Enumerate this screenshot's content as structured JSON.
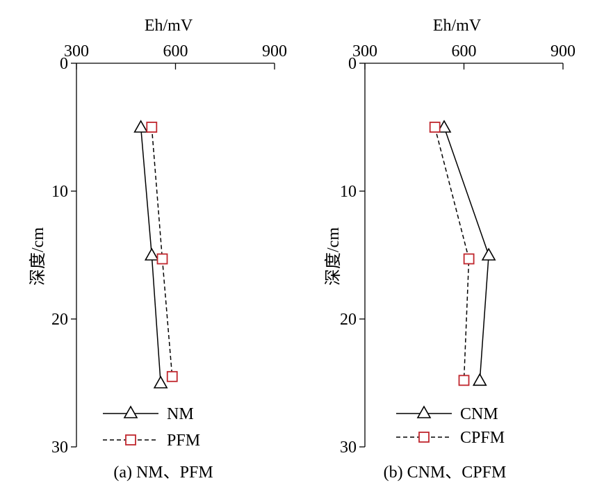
{
  "chart_data": [
    {
      "type": "line",
      "caption": "(a) NM、PFM",
      "xlabel": "Eh/mV",
      "ylabel": "深度/cm",
      "xlim": [
        300,
        900
      ],
      "ylim": [
        0,
        30
      ],
      "y_inverted": true,
      "x_axis_position": "top",
      "xticks": [
        "300",
        "600",
        "900"
      ],
      "yticks": [
        "0",
        "10",
        "20",
        "30"
      ],
      "legend_position": "bottom-left",
      "series": [
        {
          "name": "NM",
          "marker": "triangle",
          "line": "solid",
          "color": "#000000",
          "points": [
            {
              "x": 495,
              "y": 5
            },
            {
              "x": 528,
              "y": 15
            },
            {
              "x": 555,
              "y": 25
            }
          ]
        },
        {
          "name": "PFM",
          "marker": "square",
          "line": "dashed",
          "color": "#c0262d",
          "points": [
            {
              "x": 528,
              "y": 5
            },
            {
              "x": 560,
              "y": 15.3
            },
            {
              "x": 590,
              "y": 24.5
            }
          ]
        }
      ]
    },
    {
      "type": "line",
      "caption": "(b) CNM、CPFM",
      "xlabel": "Eh/mV",
      "ylabel": "深度/cm",
      "xlim": [
        300,
        900
      ],
      "ylim": [
        0,
        30
      ],
      "y_inverted": true,
      "x_axis_position": "top",
      "xticks": [
        "300",
        "600",
        "900"
      ],
      "yticks": [
        "0",
        "10",
        "20",
        "30"
      ],
      "legend_position": "bottom-left",
      "series": [
        {
          "name": "CNM",
          "marker": "triangle",
          "line": "solid",
          "color": "#000000",
          "points": [
            {
              "x": 540,
              "y": 5
            },
            {
              "x": 675,
              "y": 15
            },
            {
              "x": 648,
              "y": 24.8
            }
          ]
        },
        {
          "name": "CPFM",
          "marker": "square",
          "line": "dashed",
          "color": "#c0262d",
          "points": [
            {
              "x": 512,
              "y": 5
            },
            {
              "x": 615,
              "y": 15.3
            },
            {
              "x": 600,
              "y": 24.8
            }
          ]
        }
      ]
    }
  ]
}
